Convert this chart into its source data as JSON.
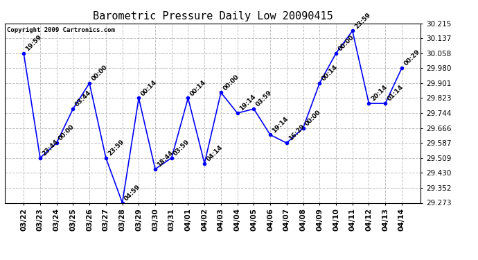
{
  "title": "Barometric Pressure Daily Low 20090415",
  "copyright": "Copyright 2009 Cartronics.com",
  "x_labels": [
    "03/22",
    "03/23",
    "03/24",
    "03/25",
    "03/26",
    "03/27",
    "03/28",
    "03/29",
    "03/30",
    "03/31",
    "04/01",
    "04/02",
    "04/03",
    "04/04",
    "04/05",
    "04/06",
    "04/07",
    "04/08",
    "04/09",
    "04/10",
    "04/11",
    "04/12",
    "04/13",
    "04/14"
  ],
  "y_values": [
    30.058,
    29.509,
    29.587,
    29.766,
    29.901,
    29.509,
    29.273,
    29.823,
    29.45,
    29.509,
    29.823,
    29.48,
    29.852,
    29.744,
    29.766,
    29.63,
    29.587,
    29.666,
    29.901,
    30.058,
    30.176,
    29.795,
    29.795,
    29.98
  ],
  "point_labels": [
    "19:59",
    "23:44",
    "00:00",
    "03:44",
    "00:00",
    "23:59",
    "04:59",
    "00:14",
    "18:44",
    "03:59",
    "00:14",
    "04:14",
    "00:00",
    "19:14",
    "03:59",
    "19:14",
    "16:29",
    "00:00",
    "00:14",
    "00:00",
    "23:59",
    "20:14",
    "01:14",
    "00:29"
  ],
  "ylim_min": 29.273,
  "ylim_max": 30.215,
  "yticks": [
    29.273,
    29.352,
    29.43,
    29.509,
    29.587,
    29.666,
    29.744,
    29.823,
    29.901,
    29.98,
    30.058,
    30.137,
    30.215
  ],
  "line_color": "blue",
  "marker_color": "blue",
  "background_color": "#ffffff",
  "grid_color": "#c0c0c0",
  "title_fontsize": 11,
  "tick_fontsize": 7.5,
  "label_fontsize": 6.5
}
